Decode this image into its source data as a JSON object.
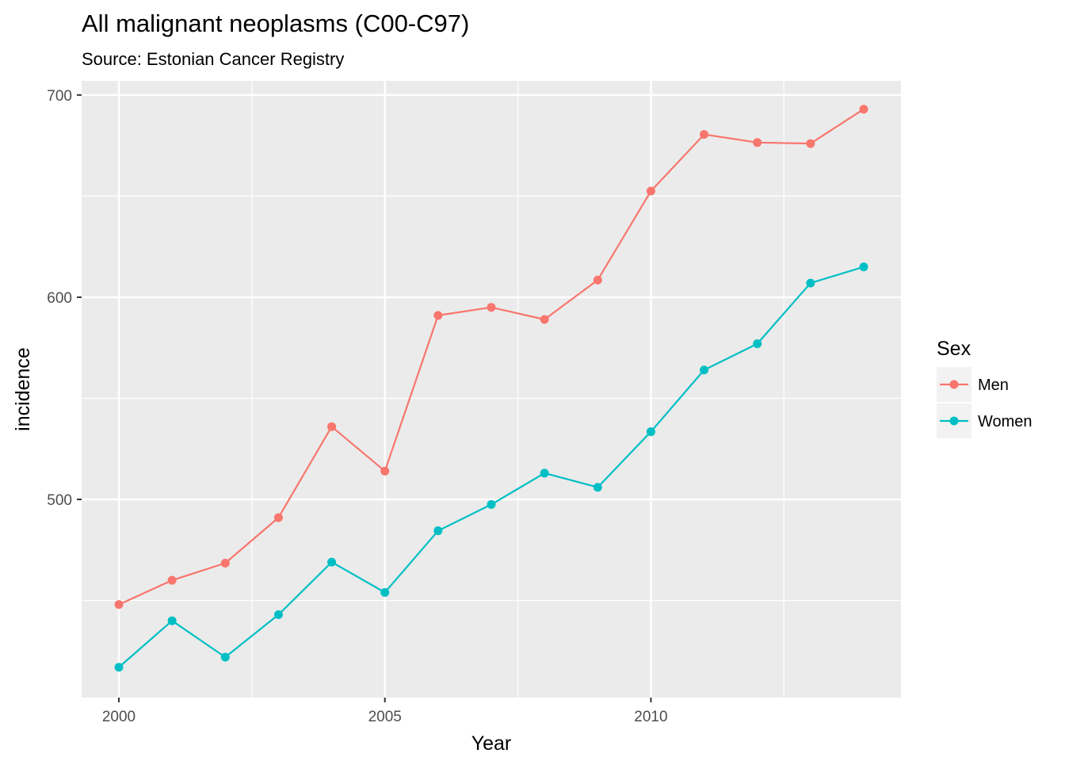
{
  "chart_data": {
    "type": "line",
    "title": "All malignant neoplasms (C00-C97)",
    "subtitle": "Source: Estonian Cancer Registry",
    "xlabel": "Year",
    "ylabel": "incidence",
    "x": [
      2000,
      2001,
      2002,
      2003,
      2004,
      2005,
      2006,
      2007,
      2008,
      2009,
      2010,
      2011,
      2012,
      2013,
      2014
    ],
    "xlim": [
      1999.3,
      2014.7
    ],
    "ylim": [
      402,
      707
    ],
    "x_ticks": [
      2000,
      2005,
      2010
    ],
    "x_tick_labels": [
      "2000",
      "2005",
      "2010"
    ],
    "x_minor_ticks": [
      2002.5,
      2007.5,
      2012.5
    ],
    "y_ticks": [
      500,
      600,
      700
    ],
    "y_tick_labels": [
      "500",
      "600",
      "700"
    ],
    "y_minor_ticks": [
      450,
      550,
      650
    ],
    "grid": true,
    "legend": {
      "title": "Sex",
      "position": "right"
    },
    "series": [
      {
        "name": "Men",
        "color": "#F8766D",
        "values": [
          448,
          460,
          468.5,
          491,
          536,
          514,
          591,
          595,
          589,
          608.5,
          652.5,
          680.5,
          676.5,
          676,
          693
        ]
      },
      {
        "name": "Women",
        "color": "#00BFC4",
        "values": [
          417,
          440,
          422,
          443,
          469,
          454,
          484.5,
          497.5,
          513,
          506,
          533.5,
          564,
          577,
          607,
          615
        ]
      }
    ]
  }
}
